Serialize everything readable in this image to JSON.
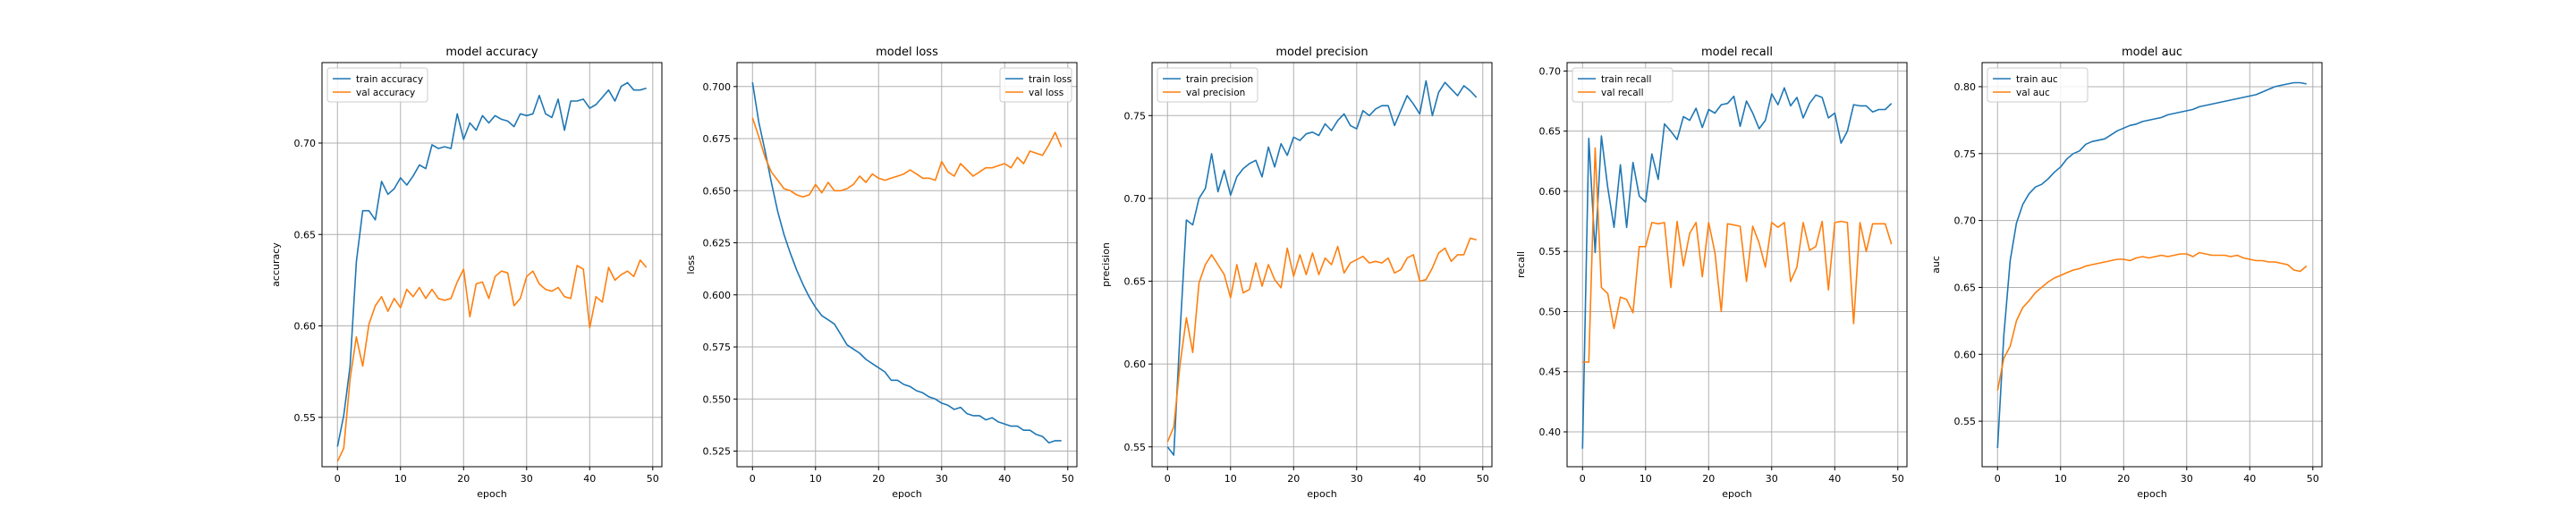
{
  "figure": {
    "colors": {
      "train": "#1f77b4",
      "val": "#ff7f0e",
      "grid": "#b0b0b0",
      "axis": "#000000"
    }
  },
  "chart_data": [
    {
      "type": "line",
      "title": "model accuracy",
      "xlabel": "epoch",
      "ylabel": "accuracy",
      "grid": true,
      "legend": "top-left",
      "xlim": [
        -2.45,
        51.45
      ],
      "ylim": [
        0.523,
        0.744
      ],
      "xticks": [
        0,
        10,
        20,
        30,
        40,
        50
      ],
      "yticks": [
        0.55,
        0.6,
        0.65,
        0.7
      ],
      "ytick_labels": [
        "0.55",
        "0.60",
        "0.65",
        "0.70"
      ],
      "x": [
        0,
        1,
        2,
        3,
        4,
        5,
        6,
        7,
        8,
        9,
        10,
        11,
        12,
        13,
        14,
        15,
        16,
        17,
        18,
        19,
        20,
        21,
        22,
        23,
        24,
        25,
        26,
        27,
        28,
        29,
        30,
        31,
        32,
        33,
        34,
        35,
        36,
        37,
        38,
        39,
        40,
        41,
        42,
        43,
        44,
        45,
        46,
        47,
        48,
        49
      ],
      "series": [
        {
          "name": "train accuracy",
          "color": "#1f77b4",
          "values": [
            0.534,
            0.551,
            0.578,
            0.635,
            0.663,
            0.663,
            0.658,
            0.679,
            0.672,
            0.675,
            0.681,
            0.677,
            0.682,
            0.688,
            0.686,
            0.699,
            0.697,
            0.698,
            0.697,
            0.716,
            0.702,
            0.711,
            0.707,
            0.715,
            0.711,
            0.715,
            0.713,
            0.712,
            0.709,
            0.716,
            0.715,
            0.716,
            0.726,
            0.716,
            0.714,
            0.724,
            0.707,
            0.723,
            0.723,
            0.724,
            0.719,
            0.721,
            0.725,
            0.729,
            0.723,
            0.731,
            0.733,
            0.729,
            0.729,
            0.73
          ]
        },
        {
          "name": "val accuracy",
          "color": "#ff7f0e",
          "values": [
            0.526,
            0.533,
            0.571,
            0.594,
            0.578,
            0.601,
            0.611,
            0.616,
            0.608,
            0.615,
            0.61,
            0.62,
            0.616,
            0.621,
            0.615,
            0.62,
            0.615,
            0.614,
            0.615,
            0.624,
            0.631,
            0.605,
            0.623,
            0.624,
            0.615,
            0.627,
            0.63,
            0.629,
            0.611,
            0.615,
            0.627,
            0.63,
            0.623,
            0.62,
            0.619,
            0.621,
            0.616,
            0.615,
            0.633,
            0.631,
            0.599,
            0.616,
            0.613,
            0.632,
            0.625,
            0.628,
            0.63,
            0.627,
            0.636,
            0.632
          ]
        }
      ]
    },
    {
      "type": "line",
      "title": "model loss",
      "xlabel": "epoch",
      "ylabel": "loss",
      "grid": true,
      "legend": "top-right",
      "xlim": [
        -2.45,
        51.45
      ],
      "ylim": [
        0.5175,
        0.7115
      ],
      "xticks": [
        0,
        10,
        20,
        30,
        40,
        50
      ],
      "yticks": [
        0.525,
        0.55,
        0.575,
        0.6,
        0.625,
        0.65,
        0.675,
        0.7
      ],
      "ytick_labels": [
        "0.525",
        "0.550",
        "0.575",
        "0.600",
        "0.625",
        "0.650",
        "0.675",
        "0.700"
      ],
      "x": [
        0,
        1,
        2,
        3,
        4,
        5,
        6,
        7,
        8,
        9,
        10,
        11,
        12,
        13,
        14,
        15,
        16,
        17,
        18,
        19,
        20,
        21,
        22,
        23,
        24,
        25,
        26,
        27,
        28,
        29,
        30,
        31,
        32,
        33,
        34,
        35,
        36,
        37,
        38,
        39,
        40,
        41,
        42,
        43,
        44,
        45,
        46,
        47,
        48,
        49
      ],
      "series": [
        {
          "name": "train loss",
          "color": "#1f77b4",
          "values": [
            0.702,
            0.683,
            0.669,
            0.654,
            0.64,
            0.629,
            0.62,
            0.612,
            0.605,
            0.599,
            0.594,
            0.59,
            0.588,
            0.586,
            0.581,
            0.576,
            0.574,
            0.572,
            0.569,
            0.567,
            0.565,
            0.563,
            0.559,
            0.559,
            0.557,
            0.556,
            0.554,
            0.553,
            0.551,
            0.55,
            0.548,
            0.547,
            0.545,
            0.546,
            0.543,
            0.542,
            0.542,
            0.54,
            0.541,
            0.539,
            0.538,
            0.537,
            0.537,
            0.535,
            0.535,
            0.533,
            0.532,
            0.529,
            0.53,
            0.53
          ]
        },
        {
          "name": "val loss",
          "color": "#ff7f0e",
          "values": [
            0.685,
            0.676,
            0.666,
            0.659,
            0.655,
            0.651,
            0.65,
            0.648,
            0.647,
            0.648,
            0.653,
            0.649,
            0.654,
            0.65,
            0.65,
            0.651,
            0.653,
            0.657,
            0.654,
            0.658,
            0.656,
            0.655,
            0.656,
            0.657,
            0.658,
            0.66,
            0.658,
            0.656,
            0.656,
            0.655,
            0.664,
            0.659,
            0.657,
            0.663,
            0.66,
            0.657,
            0.659,
            0.661,
            0.661,
            0.662,
            0.663,
            0.661,
            0.666,
            0.663,
            0.669,
            0.668,
            0.667,
            0.672,
            0.678,
            0.671
          ]
        }
      ]
    },
    {
      "type": "line",
      "title": "model precision",
      "xlabel": "epoch",
      "ylabel": "precision",
      "grid": true,
      "legend": "top-left",
      "xlim": [
        -2.45,
        51.45
      ],
      "ylim": [
        0.538,
        0.782
      ],
      "xticks": [
        0,
        10,
        20,
        30,
        40,
        50
      ],
      "yticks": [
        0.55,
        0.6,
        0.65,
        0.7,
        0.75
      ],
      "ytick_labels": [
        "0.55",
        "0.60",
        "0.65",
        "0.70",
        "0.75"
      ],
      "x": [
        0,
        1,
        2,
        3,
        4,
        5,
        6,
        7,
        8,
        9,
        10,
        11,
        12,
        13,
        14,
        15,
        16,
        17,
        18,
        19,
        20,
        21,
        22,
        23,
        24,
        25,
        26,
        27,
        28,
        29,
        30,
        31,
        32,
        33,
        34,
        35,
        36,
        37,
        38,
        39,
        40,
        41,
        42,
        43,
        44,
        45,
        46,
        47,
        48,
        49
      ],
      "series": [
        {
          "name": "train precision",
          "color": "#1f77b4",
          "values": [
            0.55,
            0.545,
            0.62,
            0.687,
            0.684,
            0.7,
            0.706,
            0.727,
            0.704,
            0.717,
            0.702,
            0.713,
            0.718,
            0.721,
            0.723,
            0.713,
            0.731,
            0.719,
            0.733,
            0.726,
            0.737,
            0.735,
            0.739,
            0.74,
            0.738,
            0.745,
            0.741,
            0.747,
            0.751,
            0.744,
            0.742,
            0.753,
            0.75,
            0.754,
            0.756,
            0.756,
            0.744,
            0.753,
            0.762,
            0.757,
            0.751,
            0.771,
            0.75,
            0.764,
            0.77,
            0.766,
            0.762,
            0.768,
            0.765,
            0.761
          ]
        },
        {
          "name": "val precision",
          "color": "#ff7f0e",
          "values": [
            0.553,
            0.562,
            0.6,
            0.628,
            0.607,
            0.649,
            0.66,
            0.666,
            0.66,
            0.654,
            0.64,
            0.66,
            0.643,
            0.645,
            0.661,
            0.647,
            0.66,
            0.651,
            0.646,
            0.67,
            0.653,
            0.666,
            0.654,
            0.667,
            0.654,
            0.664,
            0.66,
            0.671,
            0.655,
            0.661,
            0.663,
            0.665,
            0.661,
            0.662,
            0.661,
            0.664,
            0.655,
            0.657,
            0.664,
            0.666,
            0.65,
            0.651,
            0.658,
            0.667,
            0.67,
            0.662,
            0.666,
            0.666,
            0.676,
            0.675
          ]
        }
      ]
    },
    {
      "type": "line",
      "title": "model recall",
      "xlabel": "epoch",
      "ylabel": "recall",
      "grid": true,
      "legend": "top-left",
      "xlim": [
        -2.45,
        51.45
      ],
      "ylim": [
        0.371,
        0.707
      ],
      "xticks": [
        0,
        10,
        20,
        30,
        40,
        50
      ],
      "yticks": [
        0.4,
        0.45,
        0.5,
        0.55,
        0.6,
        0.65,
        0.7
      ],
      "ytick_labels": [
        "0.40",
        "0.45",
        "0.50",
        "0.55",
        "0.60",
        "0.65",
        "0.70"
      ],
      "x": [
        0,
        1,
        2,
        3,
        4,
        5,
        6,
        7,
        8,
        9,
        10,
        11,
        12,
        13,
        14,
        15,
        16,
        17,
        18,
        19,
        20,
        21,
        22,
        23,
        24,
        25,
        26,
        27,
        28,
        29,
        30,
        31,
        32,
        33,
        34,
        35,
        36,
        37,
        38,
        39,
        40,
        41,
        42,
        43,
        44,
        45,
        46,
        47,
        48,
        49
      ],
      "series": [
        {
          "name": "train recall",
          "color": "#1f77b4",
          "values": [
            0.386,
            0.644,
            0.549,
            0.646,
            0.603,
            0.57,
            0.622,
            0.57,
            0.624,
            0.596,
            0.591,
            0.631,
            0.61,
            0.656,
            0.65,
            0.643,
            0.662,
            0.659,
            0.669,
            0.653,
            0.668,
            0.665,
            0.672,
            0.673,
            0.679,
            0.654,
            0.675,
            0.665,
            0.652,
            0.659,
            0.681,
            0.672,
            0.686,
            0.671,
            0.678,
            0.661,
            0.673,
            0.68,
            0.678,
            0.661,
            0.665,
            0.64,
            0.65,
            0.672,
            0.671,
            0.671,
            0.666,
            0.668,
            0.668,
            0.673
          ]
        },
        {
          "name": "val recall",
          "color": "#ff7f0e",
          "values": [
            0.458,
            0.458,
            0.636,
            0.52,
            0.515,
            0.486,
            0.512,
            0.51,
            0.499,
            0.554,
            0.554,
            0.574,
            0.573,
            0.574,
            0.52,
            0.575,
            0.538,
            0.565,
            0.574,
            0.529,
            0.574,
            0.549,
            0.5,
            0.573,
            0.572,
            0.571,
            0.525,
            0.571,
            0.557,
            0.537,
            0.574,
            0.57,
            0.574,
            0.525,
            0.537,
            0.574,
            0.551,
            0.554,
            0.575,
            0.518,
            0.574,
            0.575,
            0.574,
            0.49,
            0.574,
            0.55,
            0.573,
            0.573,
            0.573,
            0.556
          ]
        }
      ]
    },
    {
      "type": "line",
      "title": "model auc",
      "xlabel": "epoch",
      "ylabel": "auc",
      "grid": true,
      "legend": "top-left",
      "xlim": [
        -2.45,
        51.45
      ],
      "ylim": [
        0.516,
        0.818
      ],
      "xticks": [
        0,
        10,
        20,
        30,
        40,
        50
      ],
      "yticks": [
        0.55,
        0.6,
        0.65,
        0.7,
        0.75,
        0.8
      ],
      "ytick_labels": [
        "0.55",
        "0.60",
        "0.65",
        "0.70",
        "0.75",
        "0.80"
      ],
      "x": [
        0,
        1,
        2,
        3,
        4,
        5,
        6,
        7,
        8,
        9,
        10,
        11,
        12,
        13,
        14,
        15,
        16,
        17,
        18,
        19,
        20,
        21,
        22,
        23,
        24,
        25,
        26,
        27,
        28,
        29,
        30,
        31,
        32,
        33,
        34,
        35,
        36,
        37,
        38,
        39,
        40,
        41,
        42,
        43,
        44,
        45,
        46,
        47,
        48,
        49
      ],
      "series": [
        {
          "name": "train auc",
          "color": "#1f77b4",
          "values": [
            0.53,
            0.614,
            0.67,
            0.698,
            0.712,
            0.72,
            0.725,
            0.727,
            0.731,
            0.736,
            0.74,
            0.746,
            0.75,
            0.752,
            0.757,
            0.759,
            0.76,
            0.761,
            0.764,
            0.767,
            0.769,
            0.771,
            0.772,
            0.774,
            0.775,
            0.776,
            0.777,
            0.779,
            0.78,
            0.781,
            0.782,
            0.783,
            0.785,
            0.786,
            0.787,
            0.788,
            0.789,
            0.79,
            0.791,
            0.792,
            0.793,
            0.794,
            0.796,
            0.798,
            0.8,
            0.801,
            0.802,
            0.803,
            0.803,
            0.802
          ]
        },
        {
          "name": "val auc",
          "color": "#ff7f0e",
          "values": [
            0.573,
            0.597,
            0.606,
            0.625,
            0.635,
            0.64,
            0.646,
            0.65,
            0.654,
            0.657,
            0.659,
            0.661,
            0.663,
            0.664,
            0.666,
            0.667,
            0.668,
            0.669,
            0.67,
            0.671,
            0.671,
            0.67,
            0.672,
            0.673,
            0.672,
            0.673,
            0.674,
            0.673,
            0.674,
            0.675,
            0.675,
            0.673,
            0.676,
            0.675,
            0.674,
            0.674,
            0.674,
            0.673,
            0.674,
            0.672,
            0.671,
            0.67,
            0.67,
            0.669,
            0.669,
            0.668,
            0.667,
            0.663,
            0.662,
            0.666
          ]
        }
      ]
    }
  ]
}
